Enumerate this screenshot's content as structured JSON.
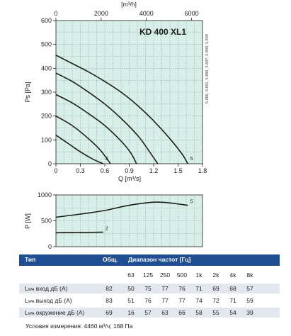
{
  "chart_data": [
    {
      "type": "line",
      "title": "KD 400 XL1",
      "xlabel": "Q [m³/s]",
      "ylabel": "Ps [Pa]",
      "x2label": "[m³/h]",
      "xlim": [
        0,
        1.8
      ],
      "ylim": [
        0,
        600
      ],
      "x2lim": [
        0,
        6480
      ],
      "x_ticks": [
        "0",
        "0.3",
        "0.6",
        "0.9",
        "1.2",
        "1.5",
        "1.8"
      ],
      "y_ticks": [
        "0",
        "100",
        "200",
        "300",
        "400",
        "500",
        "600"
      ],
      "x2_ticks": [
        "0",
        "2000",
        "4000",
        "6000"
      ],
      "grid": true,
      "side_label": "5.886, 5.891, 5.896, 5.897, 5.898, 5.899",
      "series": [
        {
          "name": "5",
          "x": [
            0,
            0.2,
            0.4,
            0.6,
            0.8,
            1.0,
            1.2,
            1.4,
            1.55,
            1.62
          ],
          "y": [
            455,
            420,
            385,
            345,
            300,
            245,
            180,
            105,
            40,
            0
          ]
        },
        {
          "x": [
            0,
            0.2,
            0.4,
            0.6,
            0.8,
            1.0,
            1.1,
            1.25
          ],
          "y": [
            380,
            345,
            300,
            250,
            190,
            120,
            75,
            0
          ]
        },
        {
          "x": [
            0,
            0.2,
            0.4,
            0.6,
            0.8,
            0.92,
            0.99
          ],
          "y": [
            290,
            255,
            210,
            160,
            95,
            45,
            0
          ]
        },
        {
          "x": [
            0,
            0.2,
            0.4,
            0.55,
            0.67
          ],
          "y": [
            200,
            160,
            105,
            55,
            0
          ]
        },
        {
          "name": "2",
          "x": [
            0,
            0.15,
            0.3,
            0.45,
            0.58
          ],
          "y": [
            120,
            85,
            50,
            20,
            0
          ]
        }
      ]
    },
    {
      "type": "line",
      "ylabel": "P [W]",
      "xlim": [
        0,
        1.8
      ],
      "ylim": [
        0,
        1000
      ],
      "y_ticks": [
        "0",
        "500",
        "1000"
      ],
      "grid": true,
      "series": [
        {
          "name": "5",
          "x": [
            0,
            0.3,
            0.6,
            0.9,
            1.2,
            1.4,
            1.62
          ],
          "y": [
            570,
            630,
            700,
            800,
            860,
            845,
            800
          ]
        },
        {
          "name": "2",
          "x": [
            0,
            0.3,
            0.58
          ],
          "y": [
            270,
            275,
            280
          ]
        }
      ]
    }
  ],
  "colors": {
    "curve": "#1d1d1b",
    "plot_bg": "#d8efe9",
    "grid": "#8fa8a2",
    "table_header": "#1f4e93",
    "table_shade": "#e3e8ef"
  },
  "table": {
    "header": {
      "type": "Тип",
      "total": "Общ.",
      "range": "Диапазон частот [Гц]"
    },
    "freqs": [
      "63",
      "125",
      "250",
      "500",
      "1k",
      "2k",
      "4k",
      "8k"
    ],
    "rows": [
      {
        "prefix": "L",
        "sub": "WA",
        "label": " вход дБ (A)",
        "total": "82",
        "values": [
          "50",
          "75",
          "77",
          "76",
          "71",
          "69",
          "68",
          "57"
        ]
      },
      {
        "prefix": "L",
        "sub": "WA",
        "label": " выход дБ (A)",
        "total": "83",
        "values": [
          "51",
          "76",
          "77",
          "77",
          "74",
          "72",
          "71",
          "59"
        ]
      },
      {
        "prefix": "L",
        "sub": "WA",
        "label": " окружение дБ (A)",
        "total": "69",
        "values": [
          "16",
          "57",
          "63",
          "66",
          "58",
          "55",
          "54",
          "39"
        ]
      }
    ],
    "note": "Условия измерения: 4460 м³/ч; 168 Па"
  }
}
